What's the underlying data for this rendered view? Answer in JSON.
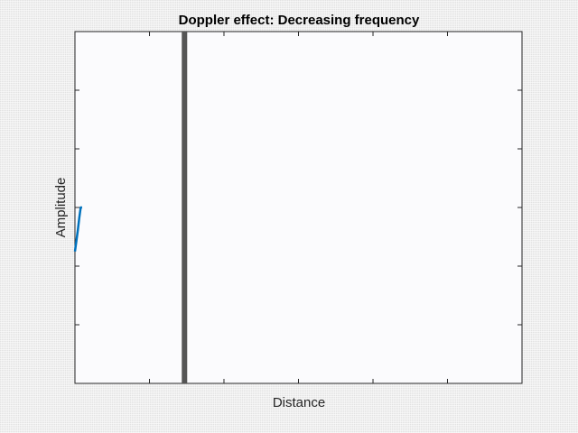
{
  "chart_data": {
    "type": "line",
    "title": "Doppler effect: Decreasing frequency",
    "xlabel": "Distance",
    "ylabel": "Amplitude",
    "xlim": [
      0,
      1
    ],
    "ylim": [
      -1,
      1
    ],
    "x_ticks": [
      0.1667,
      0.3333,
      0.5,
      0.6667,
      0.8333
    ],
    "y_ticks": [
      -0.6667,
      -0.3333,
      0,
      0.3333,
      0.6667
    ],
    "grid": false,
    "series": [
      {
        "color": "#0072bd",
        "x": [
          0.0,
          0.0032,
          0.0064,
          0.0096,
          0.0128,
          0.016
        ],
        "y": [
          -0.25,
          -0.19,
          -0.13,
          -0.06,
          0.0,
          0.0
        ]
      }
    ],
    "vertical_line": {
      "x": 0.245,
      "color": "#555555"
    }
  }
}
